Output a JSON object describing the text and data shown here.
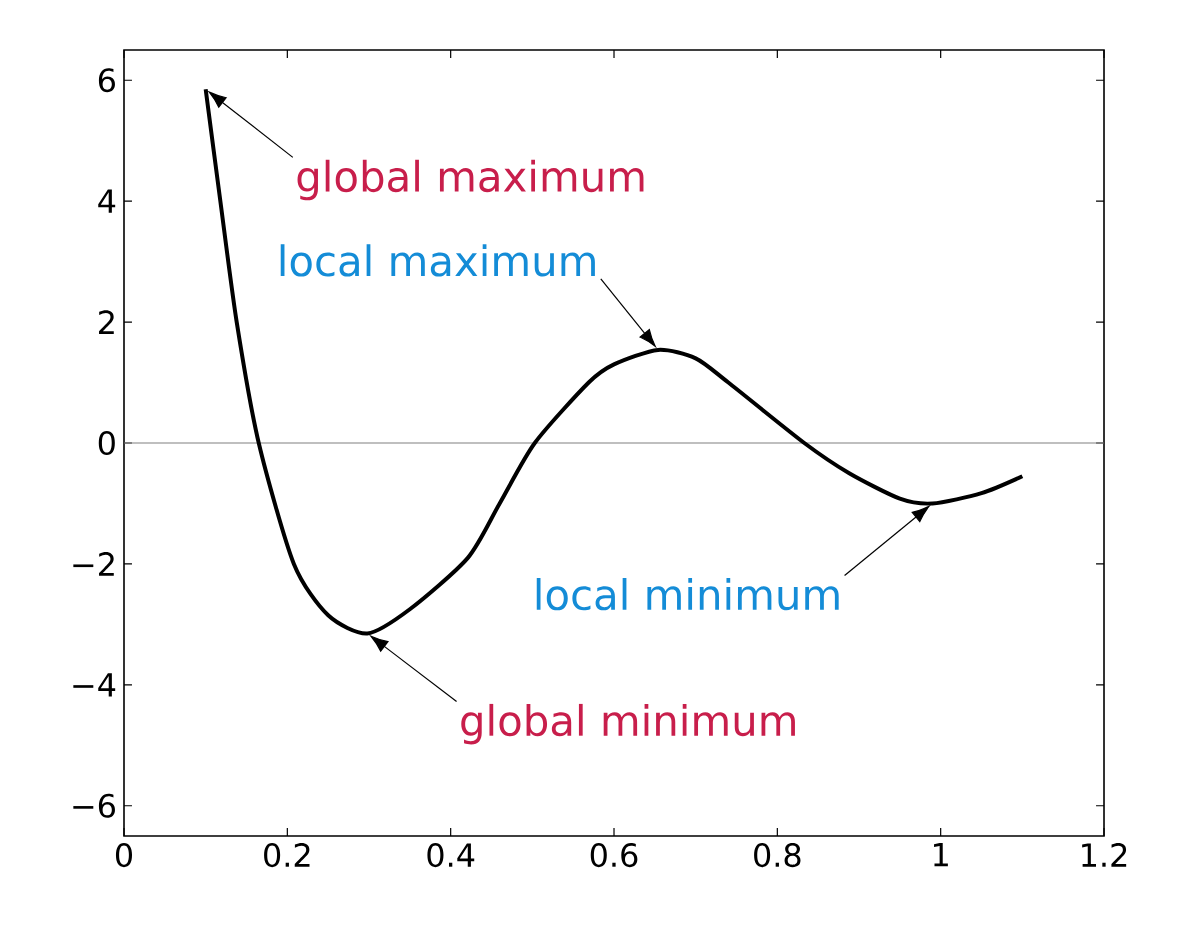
{
  "chart_data": {
    "type": "line",
    "xlim": [
      0,
      1.2
    ],
    "ylim": [
      -6.5,
      6.5
    ],
    "xticks": [
      0,
      0.2,
      0.4,
      0.6,
      0.8,
      1,
      1.2
    ],
    "yticks": [
      {
        "value": -6,
        "label": "−6"
      },
      {
        "value": -4,
        "label": "−4"
      },
      {
        "value": -2,
        "label": "−2"
      },
      0,
      2,
      4,
      6
    ],
    "series": [
      {
        "color": "#000000",
        "x": [
          0.1,
          0.118,
          0.138,
          0.165,
          0.208,
          0.25,
          0.298,
          0.35,
          0.421,
          0.46,
          0.503,
          0.569,
          0.6,
          0.654,
          0.7,
          0.74,
          0.833,
          0.888,
          0.95,
          0.99,
          1.05,
          1.1
        ],
        "values": [
          5.85,
          4.0,
          2.0,
          0.0,
          -2.0,
          -2.85,
          -3.15,
          -2.75,
          -1.9,
          -1.0,
          0.0,
          1.0,
          1.3,
          1.54,
          1.4,
          1.0,
          0.0,
          -0.5,
          -0.92,
          -1.0,
          -0.83,
          -0.55
        ]
      }
    ],
    "ref_lines": [
      {
        "axis": "y",
        "value": 0,
        "color": "#808080"
      }
    ],
    "annotations": [
      {
        "text": "global maximum",
        "x": 0.1,
        "y": 5.85
      },
      {
        "text": "local maximum",
        "x": 0.654,
        "y": 1.54
      },
      {
        "text": "local minimum",
        "x": 0.99,
        "y": -1.0
      },
      {
        "text": "global minimum",
        "x": 0.298,
        "y": -3.15
      }
    ],
    "marker": "none",
    "line_style": "solid"
  }
}
